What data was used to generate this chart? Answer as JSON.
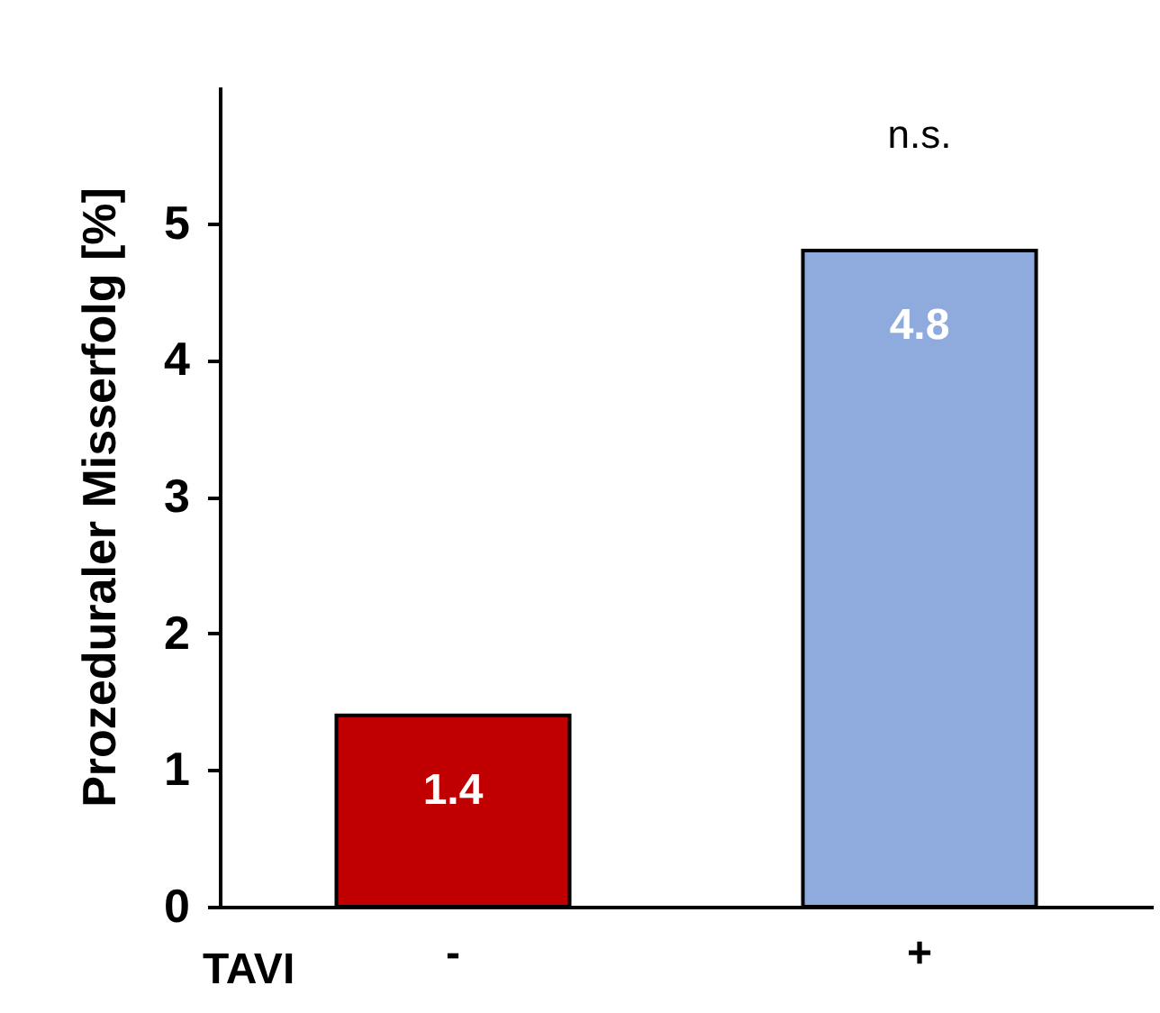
{
  "chart_data": {
    "type": "bar",
    "xlabel": "TAVI",
    "ylabel": "Prozeduraler Misserfolg [%]",
    "categories": [
      "-",
      "+"
    ],
    "values": [
      1.4,
      4.8
    ],
    "colors": [
      "#c00000",
      "#8faadc"
    ],
    "data_labels": true,
    "ylim": [
      0,
      6
    ],
    "yticks": [
      0,
      1,
      2,
      3,
      4,
      5
    ],
    "grid": false,
    "annotations": [
      "n.s."
    ]
  }
}
